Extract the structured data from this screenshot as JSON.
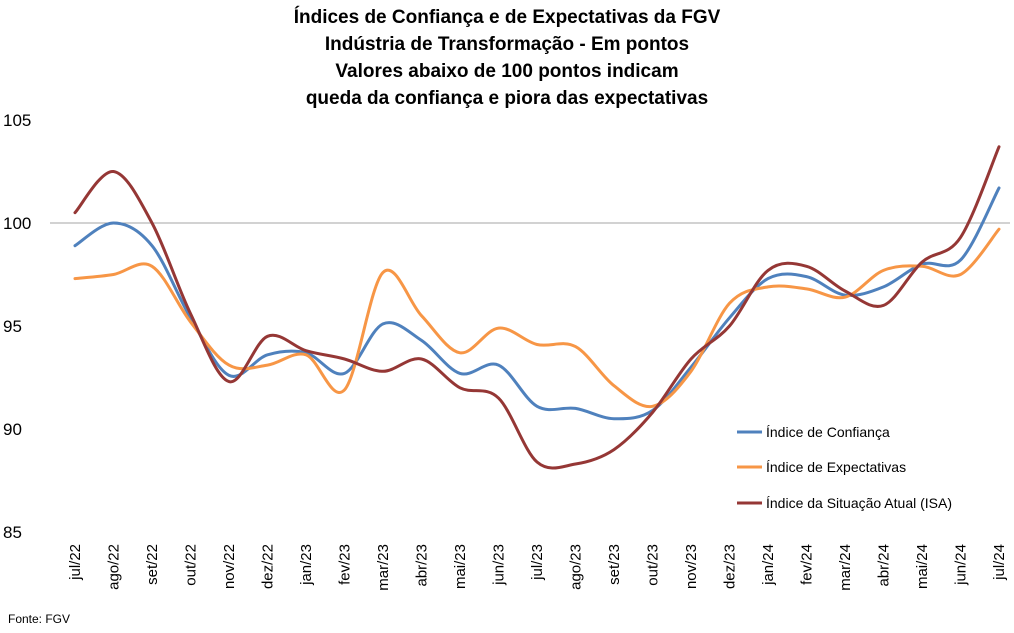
{
  "chart_data": {
    "type": "line",
    "title_lines": [
      "Índices de Confiança e de Expectativas da FGV",
      "Indústria de Transformação - Em pontos",
      "Valores abaixo de 100 pontos indicam",
      "queda da confiança e piora das expectativas"
    ],
    "categories": [
      "jul/22",
      "ago/22",
      "set/22",
      "out/22",
      "nov/22",
      "dez/22",
      "jan/23",
      "fev/23",
      "mar/23",
      "abr/23",
      "mai/23",
      "jun/23",
      "jul/23",
      "ago/23",
      "set/23",
      "out/23",
      "nov/23",
      "dez/23",
      "jan/24",
      "fev/24",
      "mar/24",
      "abr/24",
      "mai/24",
      "jun/24",
      "jul/24"
    ],
    "ylim": [
      85,
      105
    ],
    "yticks": [
      85,
      90,
      95,
      100,
      105
    ],
    "reference_line": 100,
    "legend_position": "right",
    "series": [
      {
        "name": "Índice de Confiança",
        "color": "#4f81bd",
        "values": [
          98.9,
          100.0,
          98.9,
          95.4,
          92.6,
          93.6,
          93.7,
          92.7,
          95.1,
          94.3,
          92.7,
          93.1,
          91.1,
          91.0,
          90.5,
          90.9,
          93.0,
          95.4,
          97.3,
          97.4,
          96.5,
          96.9,
          98.0,
          98.2,
          101.7
        ]
      },
      {
        "name": "Índice de Expectativas",
        "color": "#f79646",
        "values": [
          97.3,
          97.5,
          97.9,
          95.2,
          93.1,
          93.1,
          93.6,
          91.9,
          97.6,
          95.5,
          93.7,
          94.9,
          94.1,
          94.0,
          92.1,
          91.1,
          92.8,
          96.1,
          96.9,
          96.8,
          96.4,
          97.7,
          97.9,
          97.5,
          99.7
        ]
      },
      {
        "name": "Índice da Situação Atual (ISA)",
        "color": "#953735",
        "values": [
          100.5,
          102.5,
          100.0,
          95.6,
          92.3,
          94.5,
          93.8,
          93.4,
          92.8,
          93.4,
          92.0,
          91.5,
          88.4,
          88.3,
          89.0,
          90.8,
          93.4,
          95.0,
          97.7,
          97.9,
          96.7,
          96.0,
          98.1,
          99.3,
          103.7
        ]
      }
    ]
  },
  "source": "Fonte: FGV"
}
